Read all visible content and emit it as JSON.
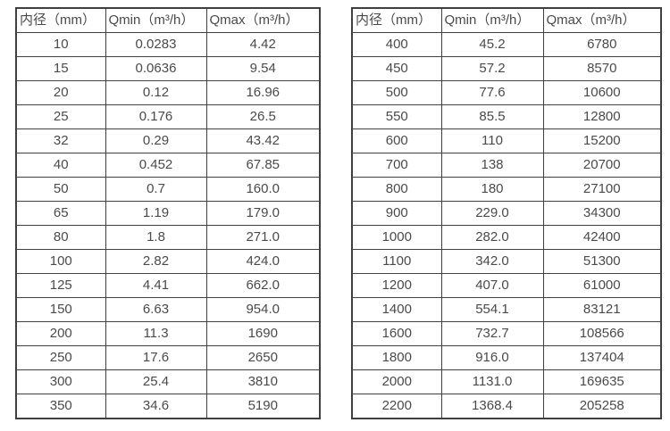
{
  "tables": [
    {
      "name": "flow-table-left",
      "headers": [
        "内径（mm）",
        "Qmin（m³/h）",
        "Qmax（m³/h）"
      ],
      "rows": [
        [
          "10",
          "0.0283",
          "4.42"
        ],
        [
          "15",
          "0.0636",
          "9.54"
        ],
        [
          "20",
          "0.12",
          "16.96"
        ],
        [
          "25",
          "0.176",
          "26.5"
        ],
        [
          "32",
          "0.29",
          "43.42"
        ],
        [
          "40",
          "0.452",
          "67.85"
        ],
        [
          "50",
          "0.7",
          "160.0"
        ],
        [
          "65",
          "1.19",
          "179.0"
        ],
        [
          "80",
          "1.8",
          "271.0"
        ],
        [
          "100",
          "2.82",
          "424.0"
        ],
        [
          "125",
          "4.41",
          "662.0"
        ],
        [
          "150",
          "6.63",
          "954.0"
        ],
        [
          "200",
          "11.3",
          "1690"
        ],
        [
          "250",
          "17.6",
          "2650"
        ],
        [
          "300",
          "25.4",
          "3810"
        ],
        [
          "350",
          "34.6",
          "5190"
        ]
      ]
    },
    {
      "name": "flow-table-right",
      "headers": [
        "内径（mm）",
        "Qmin（m³/h）",
        "Qmax（m³/h）"
      ],
      "rows": [
        [
          "400",
          "45.2",
          "6780"
        ],
        [
          "450",
          "57.2",
          "8570"
        ],
        [
          "500",
          "77.6",
          "10600"
        ],
        [
          "550",
          "85.5",
          "12800"
        ],
        [
          "600",
          "110",
          "15200"
        ],
        [
          "700",
          "138",
          "20700"
        ],
        [
          "800",
          "180",
          "27100"
        ],
        [
          "900",
          "229.0",
          "34300"
        ],
        [
          "1000",
          "282.0",
          "42400"
        ],
        [
          "1100",
          "342.0",
          "51300"
        ],
        [
          "1200",
          "407.0",
          "61000"
        ],
        [
          "1400",
          "554.1",
          "83121"
        ],
        [
          "1600",
          "732.7",
          "108566"
        ],
        [
          "1800",
          "916.0",
          "137404"
        ],
        [
          "2000",
          "1131.0",
          "169635"
        ],
        [
          "2200",
          "1368.4",
          "205258"
        ]
      ]
    }
  ],
  "column_semantics": [
    "diameter",
    "qmin",
    "qmax"
  ],
  "colors": {
    "border": "#404040",
    "text": "#4a4a4a",
    "background": "#ffffff"
  }
}
